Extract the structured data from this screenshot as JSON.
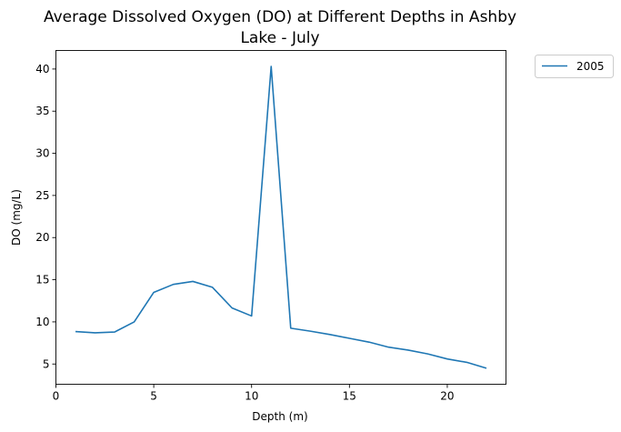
{
  "chart_data": {
    "type": "line",
    "title_line1": "Average Dissolved Oxygen (DO) at Different Depths in Ashby",
    "title_line2": "Lake - July",
    "xlabel": "Depth (m)",
    "ylabel": "DO (mg/L)",
    "xlim": [
      0,
      23
    ],
    "ylim": [
      2.6,
      42.2
    ],
    "xticks": [
      0,
      5,
      10,
      15,
      20
    ],
    "yticks": [
      5,
      10,
      15,
      20,
      25,
      30,
      35,
      40
    ],
    "grid": false,
    "legend_position": "outside-top-right",
    "series": [
      {
        "name": "2005",
        "color": "#1f77b4",
        "x": [
          1,
          2,
          3,
          4,
          5,
          6,
          7,
          8,
          9,
          10,
          11,
          12,
          13,
          14,
          15,
          16,
          17,
          18,
          19,
          20,
          21,
          22
        ],
        "y": [
          8.85,
          8.7,
          8.8,
          10.0,
          13.5,
          14.45,
          14.8,
          14.1,
          11.65,
          10.7,
          40.3,
          9.25,
          8.9,
          8.5,
          8.05,
          7.6,
          7.0,
          6.65,
          6.2,
          5.6,
          5.2,
          4.5
        ]
      }
    ]
  }
}
